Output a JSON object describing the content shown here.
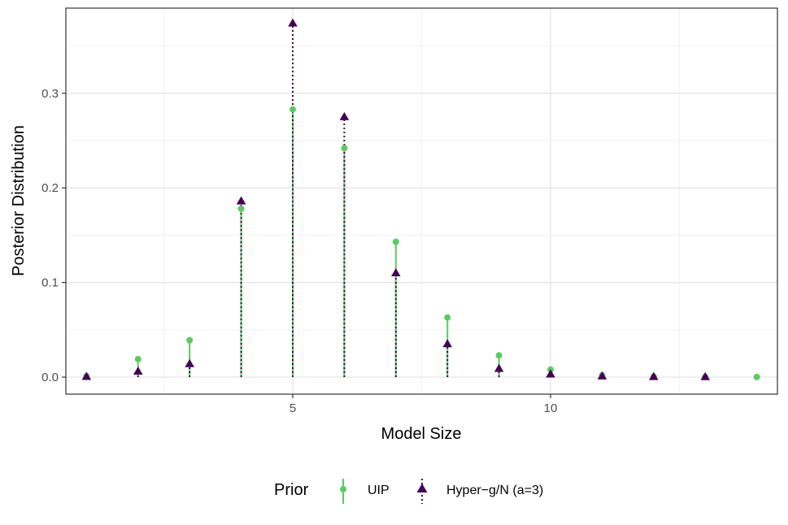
{
  "chart_data": {
    "type": "scatter",
    "title": "",
    "xlabel": "Model Size",
    "ylabel": "Posterior Distribution",
    "xlim": [
      0.6,
      14.4
    ],
    "ylim": [
      -0.018,
      0.39
    ],
    "x_ticks": [
      5,
      10
    ],
    "x_tick_labels": [
      "5",
      "10"
    ],
    "x_minor_ticks": [
      2.5,
      7.5,
      12.5
    ],
    "y_ticks": [
      0.0,
      0.1,
      0.2,
      0.3
    ],
    "y_tick_labels": [
      "0.0",
      "0.1",
      "0.2",
      "0.3"
    ],
    "y_minor_ticks": [
      0.05,
      0.15,
      0.25,
      0.35
    ],
    "grid": true,
    "legend_position": "bottom",
    "legend_title": "Prior",
    "series": [
      {
        "name": "UIP",
        "color": "#5ec962",
        "marker": "circle",
        "line_style": "solid",
        "x": [
          1,
          2,
          3,
          4,
          5,
          6,
          7,
          8,
          9,
          10,
          11,
          12,
          13,
          14
        ],
        "y": [
          0.001,
          0.019,
          0.039,
          0.178,
          0.283,
          0.242,
          0.143,
          0.063,
          0.023,
          0.008,
          0.002,
          0.0005,
          0.0002,
          0.0001
        ]
      },
      {
        "name": "Hyper-g/N (a=3)",
        "color": "#440154",
        "marker": "triangle",
        "line_style": "dotted",
        "x": [
          1,
          2,
          3,
          4,
          5,
          6,
          7,
          8,
          9,
          10,
          11,
          12,
          13
        ],
        "y": [
          0.0005,
          0.006,
          0.014,
          0.186,
          0.374,
          0.275,
          0.11,
          0.035,
          0.009,
          0.003,
          0.001,
          0.0004,
          0.0002
        ]
      }
    ]
  },
  "legend": {
    "title": "Prior",
    "items": [
      {
        "label": "UIP"
      },
      {
        "label": "Hyper−g/N (a=3)"
      }
    ]
  }
}
